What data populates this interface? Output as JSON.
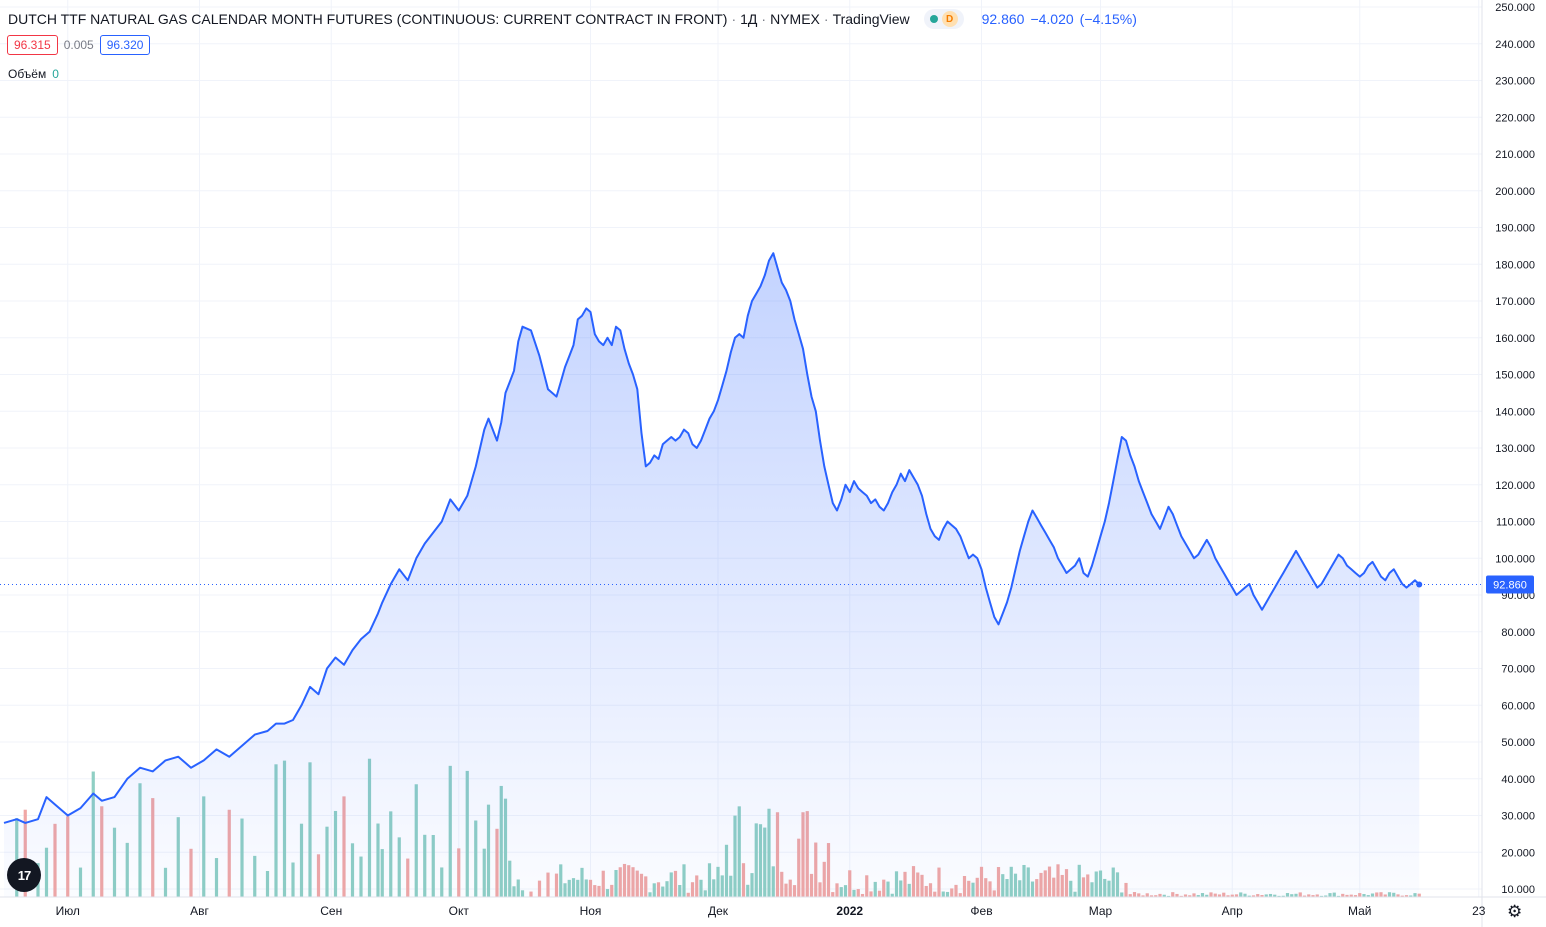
{
  "header": {
    "title": "DUTCH TTF NATURAL GAS CALENDAR MONTH FUTURES (CONTINUOUS: CURRENT CONTRACT IN FRONT)",
    "interval": "1Д",
    "exchange": "NYMEX",
    "source": "TradingView",
    "delay_badge": "D",
    "last": "92.860",
    "change": "−4.020",
    "change_pct": "(−4.15%)"
  },
  "quote": {
    "bid": "96.315",
    "spread": "0.005",
    "ask": "96.320"
  },
  "volume_legend": {
    "label": "Объём",
    "value": "0"
  },
  "logo": {
    "text": "17",
    "name": "tradingview-logo"
  },
  "chart_data": {
    "type": "area",
    "ylim": [
      0,
      250
    ],
    "y_ticks": [
      "250.000",
      "240.000",
      "230.000",
      "220.000",
      "210.000",
      "200.000",
      "190.000",
      "180.000",
      "170.000",
      "160.000",
      "150.000",
      "140.000",
      "130.000",
      "120.000",
      "110.000",
      "100.000",
      "90.000",
      "80.000",
      "70.000",
      "60.000",
      "50.000",
      "40.000",
      "30.000",
      "20.000",
      "10.000"
    ],
    "y_tick_values": [
      250,
      240,
      230,
      220,
      210,
      200,
      190,
      180,
      170,
      160,
      150,
      140,
      130,
      120,
      110,
      100,
      90,
      80,
      70,
      60,
      50,
      40,
      30,
      20,
      10
    ],
    "x_ticks": [
      "Июл",
      "Авг",
      "Сен",
      "Окт",
      "Ноя",
      "Дек",
      "2022",
      "Фев",
      "Мар",
      "Апр",
      "Май",
      "23"
    ],
    "x_tick_days": [
      15,
      46,
      77,
      107,
      138,
      168,
      199,
      230,
      258,
      289,
      319,
      347
    ],
    "last_value": 92.86,
    "last_label": "92.860",
    "colors": {
      "line": "#2962ff",
      "up_volume": "#8fcfc4",
      "down_volume": "#f0a7a5"
    },
    "price": [
      [
        0,
        28
      ],
      [
        3,
        29
      ],
      [
        5,
        28
      ],
      [
        8,
        29
      ],
      [
        10,
        35
      ],
      [
        12,
        33
      ],
      [
        15,
        30
      ],
      [
        18,
        32
      ],
      [
        21,
        36
      ],
      [
        23,
        34
      ],
      [
        26,
        35
      ],
      [
        29,
        40
      ],
      [
        32,
        43
      ],
      [
        35,
        42
      ],
      [
        38,
        45
      ],
      [
        41,
        46
      ],
      [
        44,
        43
      ],
      [
        47,
        45
      ],
      [
        50,
        48
      ],
      [
        53,
        46
      ],
      [
        56,
        49
      ],
      [
        59,
        52
      ],
      [
        62,
        53
      ],
      [
        64,
        55
      ],
      [
        66,
        55
      ],
      [
        68,
        56
      ],
      [
        70,
        60
      ],
      [
        72,
        65
      ],
      [
        74,
        63
      ],
      [
        76,
        70
      ],
      [
        78,
        73
      ],
      [
        80,
        71
      ],
      [
        82,
        75
      ],
      [
        84,
        78
      ],
      [
        86,
        80
      ],
      [
        88,
        85
      ],
      [
        89,
        88
      ],
      [
        91,
        93
      ],
      [
        93,
        97
      ],
      [
        95,
        94
      ],
      [
        97,
        100
      ],
      [
        99,
        104
      ],
      [
        101,
        107
      ],
      [
        103,
        110
      ],
      [
        105,
        116
      ],
      [
        107,
        113
      ],
      [
        109,
        117
      ],
      [
        111,
        125
      ],
      [
        113,
        135
      ],
      [
        114,
        138
      ],
      [
        116,
        132
      ],
      [
        117,
        137
      ],
      [
        118,
        145
      ],
      [
        119,
        148
      ],
      [
        120,
        151
      ],
      [
        121,
        159
      ],
      [
        122,
        163
      ],
      [
        124,
        162
      ],
      [
        126,
        155
      ],
      [
        128,
        146
      ],
      [
        130,
        144
      ],
      [
        131,
        148
      ],
      [
        132,
        152
      ],
      [
        133,
        155
      ],
      [
        134,
        158
      ],
      [
        135,
        165
      ],
      [
        136,
        166
      ],
      [
        137,
        168
      ],
      [
        138,
        167
      ],
      [
        139,
        161
      ],
      [
        140,
        159
      ],
      [
        141,
        158
      ],
      [
        142,
        160
      ],
      [
        143,
        158
      ],
      [
        144,
        163
      ],
      [
        145,
        162
      ],
      [
        146,
        157
      ],
      [
        147,
        153
      ],
      [
        148,
        150
      ],
      [
        149,
        146
      ],
      [
        150,
        134
      ],
      [
        151,
        125
      ],
      [
        152,
        126
      ],
      [
        153,
        128
      ],
      [
        154,
        127
      ],
      [
        155,
        131
      ],
      [
        156,
        132
      ],
      [
        157,
        133
      ],
      [
        158,
        132
      ],
      [
        159,
        133
      ],
      [
        160,
        135
      ],
      [
        161,
        134
      ],
      [
        162,
        131
      ],
      [
        163,
        130
      ],
      [
        164,
        132
      ],
      [
        165,
        135
      ],
      [
        166,
        138
      ],
      [
        167,
        140
      ],
      [
        168,
        143
      ],
      [
        169,
        147
      ],
      [
        170,
        151
      ],
      [
        171,
        156
      ],
      [
        172,
        160
      ],
      [
        173,
        161
      ],
      [
        174,
        160
      ],
      [
        175,
        166
      ],
      [
        176,
        170
      ],
      [
        177,
        172
      ],
      [
        178,
        174
      ],
      [
        179,
        177
      ],
      [
        180,
        181
      ],
      [
        181,
        183
      ],
      [
        182,
        179
      ],
      [
        183,
        175
      ],
      [
        184,
        173
      ],
      [
        185,
        170
      ],
      [
        186,
        165
      ],
      [
        187,
        161
      ],
      [
        188,
        157
      ],
      [
        189,
        150
      ],
      [
        190,
        144
      ],
      [
        191,
        140
      ],
      [
        192,
        132
      ],
      [
        193,
        125
      ],
      [
        194,
        120
      ],
      [
        195,
        115
      ],
      [
        196,
        113
      ],
      [
        197,
        116
      ],
      [
        198,
        120
      ],
      [
        199,
        118
      ],
      [
        200,
        121
      ],
      [
        201,
        119
      ],
      [
        202,
        118
      ],
      [
        203,
        117
      ],
      [
        204,
        115
      ],
      [
        205,
        116
      ],
      [
        206,
        114
      ],
      [
        207,
        113
      ],
      [
        208,
        115
      ],
      [
        209,
        118
      ],
      [
        210,
        120
      ],
      [
        211,
        123
      ],
      [
        212,
        121
      ],
      [
        213,
        124
      ],
      [
        214,
        122
      ],
      [
        215,
        120
      ],
      [
        216,
        117
      ],
      [
        217,
        112
      ],
      [
        218,
        108
      ],
      [
        219,
        106
      ],
      [
        220,
        105
      ],
      [
        221,
        108
      ],
      [
        222,
        110
      ],
      [
        223,
        109
      ],
      [
        224,
        108
      ],
      [
        225,
        106
      ],
      [
        226,
        103
      ],
      [
        227,
        100
      ],
      [
        228,
        101
      ],
      [
        229,
        100
      ],
      [
        230,
        97
      ],
      [
        231,
        92
      ],
      [
        232,
        88
      ],
      [
        233,
        84
      ],
      [
        234,
        82
      ],
      [
        235,
        85
      ],
      [
        236,
        88
      ],
      [
        237,
        92
      ],
      [
        238,
        97
      ],
      [
        239,
        102
      ],
      [
        240,
        106
      ],
      [
        241,
        110
      ],
      [
        242,
        113
      ],
      [
        243,
        111
      ],
      [
        244,
        109
      ],
      [
        245,
        107
      ],
      [
        246,
        105
      ],
      [
        247,
        103
      ],
      [
        248,
        100
      ],
      [
        249,
        98
      ],
      [
        250,
        96
      ],
      [
        251,
        97
      ],
      [
        252,
        98
      ],
      [
        253,
        100
      ],
      [
        254,
        96
      ],
      [
        255,
        95
      ],
      [
        256,
        98
      ],
      [
        257,
        102
      ],
      [
        258,
        106
      ],
      [
        259,
        110
      ],
      [
        260,
        115
      ],
      [
        261,
        121
      ],
      [
        262,
        127
      ],
      [
        263,
        133
      ],
      [
        264,
        132
      ],
      [
        265,
        128
      ],
      [
        266,
        125
      ],
      [
        267,
        121
      ],
      [
        268,
        118
      ],
      [
        269,
        115
      ],
      [
        270,
        112
      ],
      [
        271,
        110
      ],
      [
        272,
        108
      ],
      [
        273,
        111
      ],
      [
        274,
        114
      ],
      [
        275,
        112
      ],
      [
        276,
        109
      ],
      [
        277,
        106
      ],
      [
        278,
        104
      ],
      [
        279,
        102
      ],
      [
        280,
        100
      ],
      [
        281,
        101
      ],
      [
        282,
        103
      ],
      [
        283,
        105
      ],
      [
        284,
        103
      ],
      [
        285,
        100
      ],
      [
        286,
        98
      ],
      [
        287,
        96
      ],
      [
        288,
        94
      ],
      [
        289,
        92
      ],
      [
        290,
        90
      ],
      [
        291,
        91
      ],
      [
        292,
        92
      ],
      [
        293,
        93
      ],
      [
        294,
        90
      ],
      [
        295,
        88
      ],
      [
        296,
        86
      ],
      [
        297,
        88
      ],
      [
        298,
        90
      ],
      [
        299,
        92
      ],
      [
        300,
        94
      ],
      [
        301,
        96
      ],
      [
        302,
        98
      ],
      [
        303,
        100
      ],
      [
        304,
        102
      ],
      [
        305,
        100
      ],
      [
        306,
        98
      ],
      [
        307,
        96
      ],
      [
        308,
        94
      ],
      [
        309,
        92
      ],
      [
        310,
        93
      ],
      [
        311,
        95
      ],
      [
        312,
        97
      ],
      [
        313,
        99
      ],
      [
        314,
        101
      ],
      [
        315,
        100
      ],
      [
        316,
        98
      ],
      [
        317,
        97
      ],
      [
        318,
        96
      ],
      [
        319,
        95
      ],
      [
        320,
        96
      ],
      [
        321,
        98
      ],
      [
        322,
        99
      ],
      [
        323,
        97
      ],
      [
        324,
        95
      ],
      [
        325,
        94
      ],
      [
        326,
        96
      ],
      [
        327,
        97
      ],
      [
        328,
        95
      ],
      [
        329,
        93
      ],
      [
        330,
        92
      ],
      [
        331,
        93
      ],
      [
        332,
        94
      ],
      [
        333,
        92.86
      ]
    ]
  }
}
